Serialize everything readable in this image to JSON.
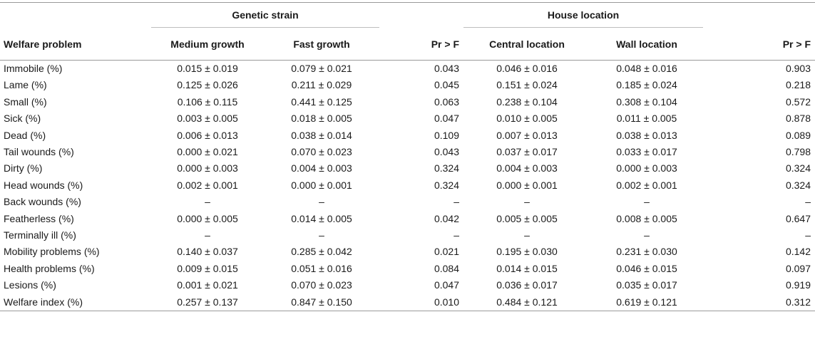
{
  "groups": {
    "genetic": "Genetic strain",
    "house": "House location"
  },
  "headers": {
    "problem": "Welfare problem",
    "medium": "Medium growth",
    "fast": "Fast growth",
    "pr1": "Pr > F",
    "central": "Central location",
    "wall": "Wall location",
    "pr2": "Pr > F"
  },
  "rows": [
    {
      "problem": "Immobile (%)",
      "medium": "0.015 ± 0.019",
      "fast": "0.079 ± 0.021",
      "pr1": "0.043",
      "central": "0.046 ± 0.016",
      "wall": "0.048 ± 0.016",
      "pr2": "0.903"
    },
    {
      "problem": "Lame (%)",
      "medium": "0.125 ± 0.026",
      "fast": "0.211 ± 0.029",
      "pr1": "0.045",
      "central": "0.151 ± 0.024",
      "wall": "0.185 ± 0.024",
      "pr2": "0.218"
    },
    {
      "problem": "Small (%)",
      "medium": "0.106 ± 0.115",
      "fast": "0.441 ± 0.125",
      "pr1": "0.063",
      "central": "0.238 ± 0.104",
      "wall": "0.308 ± 0.104",
      "pr2": "0.572"
    },
    {
      "problem": "Sick (%)",
      "medium": "0.003 ± 0.005",
      "fast": "0.018 ± 0.005",
      "pr1": "0.047",
      "central": "0.010 ± 0.005",
      "wall": "0.011 ± 0.005",
      "pr2": "0.878"
    },
    {
      "problem": "Dead (%)",
      "medium": "0.006 ± 0.013",
      "fast": "0.038 ± 0.014",
      "pr1": "0.109",
      "central": "0.007 ± 0.013",
      "wall": "0.038 ± 0.013",
      "pr2": "0.089"
    },
    {
      "problem": "Tail wounds (%)",
      "medium": "0.000 ± 0.021",
      "fast": "0.070 ± 0.023",
      "pr1": "0.043",
      "central": "0.037 ± 0.017",
      "wall": "0.033 ± 0.017",
      "pr2": "0.798"
    },
    {
      "problem": "Dirty (%)",
      "medium": "0.000 ± 0.003",
      "fast": "0.004 ± 0.003",
      "pr1": "0.324",
      "central": "0.004 ± 0.003",
      "wall": "0.000 ± 0.003",
      "pr2": "0.324"
    },
    {
      "problem": "Head wounds (%)",
      "medium": "0.002 ± 0.001",
      "fast": "0.000 ± 0.001",
      "pr1": "0.324",
      "central": "0.000 ± 0.001",
      "wall": "0.002 ± 0.001",
      "pr2": "0.324"
    },
    {
      "problem": "Back wounds (%)",
      "medium": "–",
      "fast": "–",
      "pr1": "–",
      "central": "–",
      "wall": "–",
      "pr2": "–"
    },
    {
      "problem": "Featherless (%)",
      "medium": "0.000 ± 0.005",
      "fast": "0.014 ± 0.005",
      "pr1": "0.042",
      "central": "0.005 ± 0.005",
      "wall": "0.008 ± 0.005",
      "pr2": "0.647"
    },
    {
      "problem": "Terminally ill (%)",
      "medium": "–",
      "fast": "–",
      "pr1": "–",
      "central": "–",
      "wall": "–",
      "pr2": "–"
    },
    {
      "problem": "Mobility problems (%)",
      "medium": "0.140 ± 0.037",
      "fast": "0.285 ± 0.042",
      "pr1": "0.021",
      "central": "0.195 ± 0.030",
      "wall": "0.231 ± 0.030",
      "pr2": "0.142"
    },
    {
      "problem": "Health problems (%)",
      "medium": "0.009 ± 0.015",
      "fast": "0.051 ± 0.016",
      "pr1": "0.084",
      "central": "0.014 ± 0.015",
      "wall": "0.046 ± 0.015",
      "pr2": "0.097"
    },
    {
      "problem": "Lesions (%)",
      "medium": "0.001 ± 0.021",
      "fast": "0.070 ± 0.023",
      "pr1": "0.047",
      "central": "0.036 ± 0.017",
      "wall": "0.035 ± 0.017",
      "pr2": "0.919"
    },
    {
      "problem": "Welfare index (%)",
      "medium": "0.257 ± 0.137",
      "fast": "0.847 ± 0.150",
      "pr1": "0.010",
      "central": "0.484 ± 0.121",
      "wall": "0.619 ± 0.121",
      "pr2": "0.312"
    }
  ]
}
